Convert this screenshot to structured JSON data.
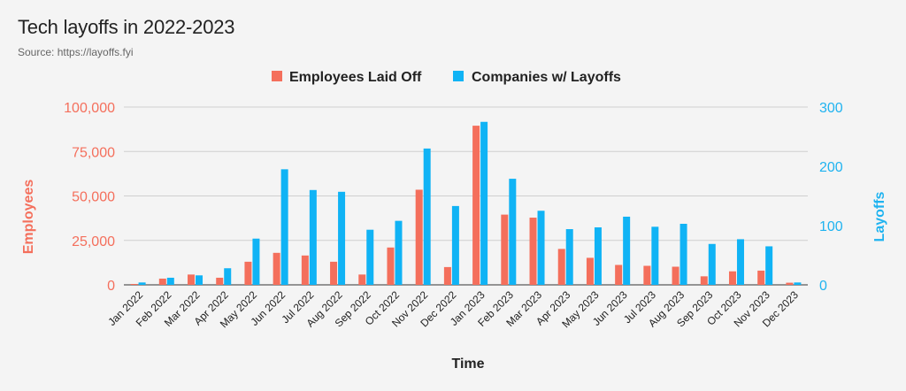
{
  "chart_data": {
    "type": "bar",
    "title": "Tech layoffs in 2022-2023",
    "subtitle": "Source: https://layoffs.fyi",
    "xlabel": "Time",
    "ylabel_left": "Employees",
    "ylabel_right": "Layoffs",
    "ylim_left": [
      0,
      100000
    ],
    "ylim_right": [
      0,
      300
    ],
    "yticks_left": [
      "0",
      "25,000",
      "50,000",
      "75,000",
      "100,000"
    ],
    "yticks_right": [
      "0",
      "100",
      "200",
      "300"
    ],
    "grid": true,
    "legend_position": "top-center",
    "categories": [
      "Jan 2022",
      "Feb 2022",
      "Mar 2022",
      "Apr 2022",
      "May 2022",
      "Jun 2022",
      "Jul 2022",
      "Aug 2022",
      "Sep 2022",
      "Oct 2022",
      "Nov 2022",
      "Dec 2022",
      "Jan 2023",
      "Feb 2023",
      "Mar 2023",
      "Apr 2023",
      "May 2023",
      "Jun 2023",
      "Jul 2023",
      "Aug 2023",
      "Sep 2023",
      "Oct 2023",
      "Nov 2023",
      "Dec 2023"
    ],
    "series": [
      {
        "name": "Employees Laid Off",
        "axis": "left",
        "color": "#f46f5c",
        "values": [
          500,
          3500,
          5800,
          4000,
          13000,
          18000,
          16500,
          13000,
          5800,
          21000,
          53500,
          10000,
          89500,
          39500,
          37800,
          20200,
          15200,
          11200,
          10700,
          10200,
          4800,
          7600,
          8000,
          1200
        ]
      },
      {
        "name": "Companies w/ Layoffs",
        "axis": "right",
        "color": "#10b3f5",
        "values": [
          4,
          12,
          16,
          28,
          78,
          195,
          160,
          157,
          93,
          108,
          230,
          133,
          275,
          179,
          125,
          94,
          97,
          115,
          98,
          103,
          69,
          77,
          65,
          4
        ]
      }
    ]
  }
}
